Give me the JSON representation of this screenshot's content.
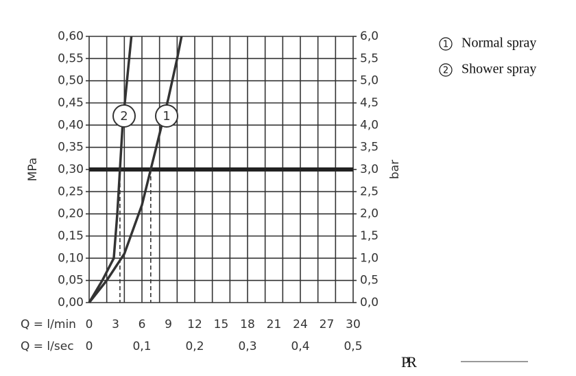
{
  "chart_data": {
    "type": "line",
    "x_label": "Q = l/min",
    "x2_label": "Q = l/sec",
    "y_label": "MPa",
    "y2_label": "bar",
    "xlim": [
      0,
      30
    ],
    "xticks": [
      0,
      3,
      6,
      9,
      12,
      15,
      18,
      21,
      24,
      27,
      30
    ],
    "x2lim": [
      0,
      0.5
    ],
    "x2ticks": [
      0,
      {
        "value": 0.1,
        "label": "0,1"
      },
      {
        "value": 0.2,
        "label": "0,2"
      },
      {
        "value": 0.3,
        "label": "0,3"
      },
      {
        "value": 0.4,
        "label": "0,4"
      },
      {
        "value": 0.5,
        "label": "0,5"
      }
    ],
    "ylim": [
      0,
      0.6
    ],
    "yticks": [
      {
        "value": 0,
        "label": "0,00"
      },
      {
        "value": 0.05,
        "label": "0,05"
      },
      {
        "value": 0.1,
        "label": "0,10"
      },
      {
        "value": 0.15,
        "label": "0,15"
      },
      {
        "value": 0.2,
        "label": "0,20"
      },
      {
        "value": 0.25,
        "label": "0,25"
      },
      {
        "value": 0.3,
        "label": "0,30"
      },
      {
        "value": 0.35,
        "label": "0,35"
      },
      {
        "value": 0.4,
        "label": "0,40"
      },
      {
        "value": 0.45,
        "label": "0,45"
      },
      {
        "value": 0.5,
        "label": "0,50"
      },
      {
        "value": 0.55,
        "label": "0,55"
      },
      {
        "value": 0.6,
        "label": "0,60"
      }
    ],
    "y2lim": [
      0,
      6
    ],
    "y2ticks": [
      {
        "value": 0,
        "label": "0,0"
      },
      {
        "value": 0.5,
        "label": "0,5"
      },
      {
        "value": 1,
        "label": "1,0"
      },
      {
        "value": 1.5,
        "label": "1,5"
      },
      {
        "value": 2,
        "label": "2,0"
      },
      {
        "value": 2.5,
        "label": "2,5"
      },
      {
        "value": 3,
        "label": "3,0"
      },
      {
        "value": 3.5,
        "label": "3,5"
      },
      {
        "value": 4,
        "label": "4,0"
      },
      {
        "value": 4.5,
        "label": "4,5"
      },
      {
        "value": 5,
        "label": "5,0"
      },
      {
        "value": 5.5,
        "label": "5,5"
      },
      {
        "value": 6,
        "label": "6,0"
      }
    ],
    "grid": true,
    "reference_line": 0.3,
    "color": "#333333",
    "series": [
      {
        "name": "Normal spray",
        "label": "1",
        "x": [
          0,
          2,
          4,
          6,
          7,
          8,
          9,
          10,
          10.5
        ],
        "values": [
          0,
          0.05,
          0.11,
          0.22,
          0.3,
          0.38,
          0.46,
          0.55,
          0.6
        ]
      },
      {
        "name": "Shower spray",
        "label": "2",
        "x": [
          0,
          1.5,
          2.8,
          3.2,
          3.5,
          3.8,
          4.3,
          4.8
        ],
        "values": [
          0,
          0.05,
          0.1,
          0.2,
          0.3,
          0.4,
          0.5,
          0.6
        ]
      }
    ],
    "logo": "PR"
  }
}
